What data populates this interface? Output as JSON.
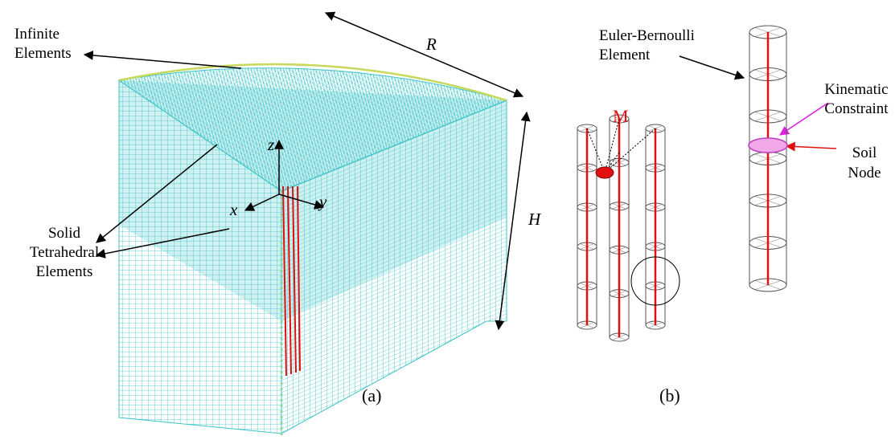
{
  "labels": {
    "infinite_elements": [
      "Infinite",
      "Elements"
    ],
    "radius": "R",
    "height": "H",
    "solid_elements": [
      "Solid",
      "Tetrahedral",
      "Elements"
    ],
    "axis_z": "z",
    "axis_x": "x",
    "axis_y": "y",
    "panel_a": "(a)",
    "euler_bernoulli": [
      "Euler-Bernoulli",
      "Element"
    ],
    "mass": "M",
    "kinematic_constraint": [
      "Kinematic",
      "Constraint"
    ],
    "soil_node": [
      "Soil",
      "Node"
    ],
    "panel_b": "(b)"
  }
}
